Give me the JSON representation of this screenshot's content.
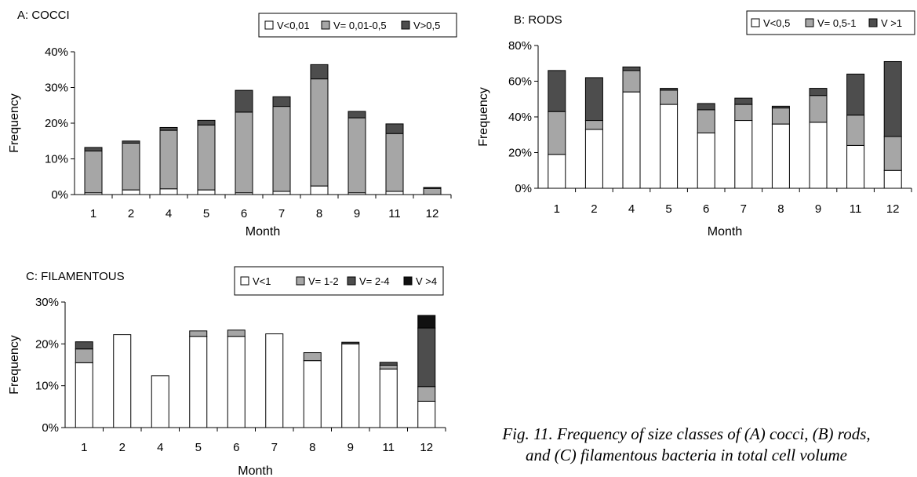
{
  "caption": {
    "line1": "Fig. 11. Frequency of size classes of (A) cocci, (B) rods,",
    "line2": "and (C) filamentous bacteria in total cell volume"
  },
  "chart_data": [
    {
      "type": "bar",
      "stacked": true,
      "title": "A:  COCCI",
      "xlabel": "Month",
      "ylabel": "Frequency",
      "ylim": [
        0,
        0.4
      ],
      "yticks": [
        "0%",
        "10%",
        "20%",
        "30%",
        "40%"
      ],
      "grid": false,
      "legend_position": "top-right",
      "categories": [
        "1",
        "2",
        "4",
        "5",
        "6",
        "7",
        "8",
        "9",
        "11",
        "12"
      ],
      "series": [
        {
          "name": "V<0,01",
          "color": "#ffffff",
          "values": [
            0.005,
            0.013,
            0.016,
            0.013,
            0.005,
            0.009,
            0.024,
            0.005,
            0.009,
            0.0
          ]
        },
        {
          "name": "V= 0,01-0,5",
          "color": "#a6a6a6",
          "values": [
            0.117,
            0.131,
            0.164,
            0.182,
            0.226,
            0.238,
            0.3,
            0.21,
            0.162,
            0.017
          ]
        },
        {
          "name": "V>0,5",
          "color": "#4d4d4d",
          "values": [
            0.01,
            0.006,
            0.008,
            0.013,
            0.061,
            0.027,
            0.04,
            0.018,
            0.027,
            0.003
          ]
        }
      ]
    },
    {
      "type": "bar",
      "stacked": true,
      "title": "B:    RODS",
      "xlabel": "Month",
      "ylabel": "Frequency",
      "ylim": [
        0,
        0.8
      ],
      "yticks": [
        "0%",
        "20%",
        "40%",
        "60%",
        "80%"
      ],
      "grid": false,
      "legend_position": "top-right",
      "categories": [
        "1",
        "2",
        "4",
        "5",
        "6",
        "7",
        "8",
        "9",
        "11",
        "12"
      ],
      "series": [
        {
          "name": "V<0,5",
          "color": "#ffffff",
          "values": [
            0.19,
            0.33,
            0.54,
            0.47,
            0.31,
            0.38,
            0.36,
            0.37,
            0.24,
            0.1
          ]
        },
        {
          "name": "V= 0,5-1",
          "color": "#a6a6a6",
          "values": [
            0.24,
            0.05,
            0.12,
            0.08,
            0.13,
            0.09,
            0.09,
            0.15,
            0.17,
            0.19
          ]
        },
        {
          "name": "V >1",
          "color": "#4d4d4d",
          "values": [
            0.23,
            0.24,
            0.02,
            0.01,
            0.035,
            0.035,
            0.01,
            0.04,
            0.23,
            0.42
          ]
        }
      ]
    },
    {
      "type": "bar",
      "stacked": true,
      "title": "C:   FILAMENTOUS",
      "xlabel": "Month",
      "ylabel": "Frequency",
      "ylim": [
        0,
        0.3
      ],
      "yticks": [
        "0%",
        "10%",
        "20%",
        "30%"
      ],
      "grid": false,
      "legend_position": "top-right",
      "categories": [
        "1",
        "2",
        "4",
        "5",
        "6",
        "7",
        "8",
        "9",
        "11",
        "12"
      ],
      "series": [
        {
          "name": "V<1",
          "color": "#ffffff",
          "values": [
            0.155,
            0.222,
            0.124,
            0.218,
            0.218,
            0.224,
            0.16,
            0.2,
            0.14,
            0.063
          ]
        },
        {
          "name": "V= 1-2",
          "color": "#a6a6a6",
          "values": [
            0.033,
            0.0,
            0.0,
            0.013,
            0.015,
            0.0,
            0.019,
            0.0,
            0.009,
            0.035
          ]
        },
        {
          "name": "V= 2-4",
          "color": "#4d4d4d",
          "values": [
            0.017,
            0.0,
            0.0,
            0.0,
            0.0,
            0.0,
            0.0,
            0.004,
            0.007,
            0.14
          ]
        },
        {
          "name": "V >4",
          "color": "#111111",
          "values": [
            0.0,
            0.0,
            0.0,
            0.0,
            0.0,
            0.0,
            0.0,
            0.0,
            0.0,
            0.03
          ]
        }
      ]
    }
  ]
}
